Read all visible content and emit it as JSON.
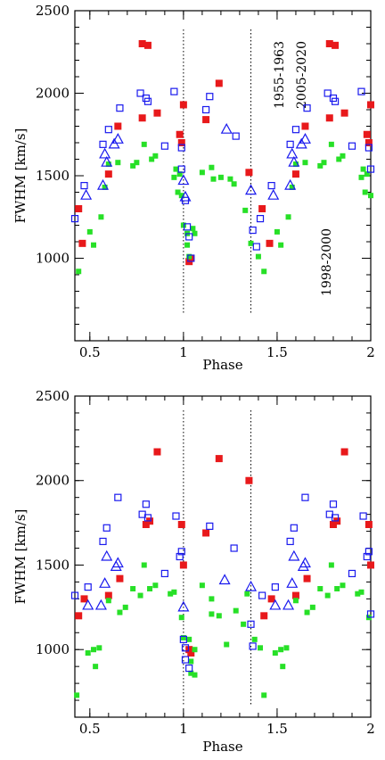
{
  "chart_data": [
    {
      "type": "scatter",
      "xlabel": "Phase",
      "ylabel": "FWHM [km/s]",
      "xlim": [
        0.42,
        2.0
      ],
      "ylim": [
        500,
        2500
      ],
      "xticks": [
        "0.5",
        "1",
        "1.5",
        "2"
      ],
      "yticks": [
        "1000",
        "1500",
        "2000",
        "2500"
      ],
      "vlines": [
        1.0,
        1.36
      ],
      "annotations": [
        "1955-1963",
        "2005-2020",
        "1998-2000"
      ],
      "series": [
        {
          "marker": "filled-square-red",
          "color": "#e8191b",
          "points": [
            [
              0.44,
              1300
            ],
            [
              0.46,
              1090
            ],
            [
              0.6,
              1510
            ],
            [
              0.65,
              1800
            ],
            [
              0.78,
              2300
            ],
            [
              0.81,
              2290
            ],
            [
              0.78,
              1850
            ],
            [
              0.86,
              1880
            ],
            [
              0.98,
              1750
            ],
            [
              0.99,
              1700
            ],
            [
              1.0,
              1930
            ],
            [
              1.03,
              980
            ],
            [
              1.04,
              1000
            ],
            [
              1.12,
              1840
            ],
            [
              1.19,
              2060
            ],
            [
              1.35,
              1520
            ],
            [
              1.42,
              1300
            ],
            [
              1.46,
              1090
            ],
            [
              1.6,
              1510
            ],
            [
              1.65,
              1800
            ],
            [
              1.78,
              2300
            ],
            [
              1.81,
              2290
            ],
            [
              1.78,
              1850
            ],
            [
              1.86,
              1880
            ],
            [
              1.98,
              1750
            ],
            [
              1.99,
              1700
            ],
            [
              2.0,
              1930
            ]
          ]
        },
        {
          "marker": "filled-square-green",
          "color": "#27e027",
          "points": [
            [
              0.44,
              920
            ],
            [
              0.5,
              1160
            ],
            [
              0.52,
              1080
            ],
            [
              0.56,
              1250
            ],
            [
              0.58,
              1430
            ],
            [
              0.6,
              1570
            ],
            [
              0.65,
              1580
            ],
            [
              0.73,
              1560
            ],
            [
              0.75,
              1580
            ],
            [
              0.79,
              1690
            ],
            [
              0.83,
              1600
            ],
            [
              0.85,
              1620
            ],
            [
              0.95,
              1490
            ],
            [
              0.96,
              1540
            ],
            [
              0.98,
              1510
            ],
            [
              0.97,
              1400
            ],
            [
              0.99,
              1380
            ],
            [
              1.0,
              1200
            ],
            [
              1.02,
              1150
            ],
            [
              1.02,
              1080
            ],
            [
              1.03,
              1010
            ],
            [
              1.05,
              1180
            ],
            [
              1.06,
              1150
            ],
            [
              1.1,
              1520
            ],
            [
              1.15,
              1550
            ],
            [
              1.16,
              1480
            ],
            [
              1.2,
              1490
            ],
            [
              1.25,
              1480
            ],
            [
              1.27,
              1450
            ],
            [
              1.33,
              1290
            ],
            [
              1.36,
              1090
            ],
            [
              1.4,
              1010
            ],
            [
              1.43,
              920
            ],
            [
              1.5,
              1160
            ],
            [
              1.52,
              1080
            ],
            [
              1.56,
              1250
            ],
            [
              1.58,
              1430
            ],
            [
              1.6,
              1570
            ],
            [
              1.65,
              1580
            ],
            [
              1.73,
              1560
            ],
            [
              1.75,
              1580
            ],
            [
              1.79,
              1690
            ],
            [
              1.83,
              1600
            ],
            [
              1.85,
              1620
            ],
            [
              1.95,
              1490
            ],
            [
              1.96,
              1540
            ],
            [
              1.98,
              1510
            ],
            [
              1.97,
              1400
            ],
            [
              2.0,
              1380
            ]
          ]
        },
        {
          "marker": "open-square-blue",
          "color": "#1a1aee",
          "points": [
            [
              0.42,
              1240
            ],
            [
              0.47,
              1440
            ],
            [
              0.57,
              1690
            ],
            [
              0.6,
              1780
            ],
            [
              0.66,
              1910
            ],
            [
              0.77,
              2000
            ],
            [
              0.8,
              1970
            ],
            [
              0.81,
              1950
            ],
            [
              0.9,
              1680
            ],
            [
              0.95,
              2010
            ],
            [
              0.99,
              1670
            ],
            [
              0.99,
              1540
            ],
            [
              1.01,
              1350
            ],
            [
              1.02,
              1190
            ],
            [
              1.03,
              1130
            ],
            [
              1.04,
              1000
            ],
            [
              1.12,
              1900
            ],
            [
              1.14,
              1980
            ],
            [
              1.28,
              1740
            ],
            [
              1.37,
              1170
            ],
            [
              1.39,
              1070
            ],
            [
              1.41,
              1240
            ],
            [
              1.47,
              1440
            ],
            [
              1.57,
              1690
            ],
            [
              1.6,
              1780
            ],
            [
              1.66,
              1910
            ],
            [
              1.77,
              2000
            ],
            [
              1.8,
              1970
            ],
            [
              1.81,
              1950
            ],
            [
              1.9,
              1680
            ],
            [
              1.95,
              2010
            ],
            [
              1.99,
              1670
            ],
            [
              2.0,
              1540
            ]
          ]
        },
        {
          "marker": "open-triangle-blue",
          "color": "#1a1aee",
          "points": [
            [
              0.48,
              1380
            ],
            [
              0.57,
              1440
            ],
            [
              0.58,
              1630
            ],
            [
              0.59,
              1580
            ],
            [
              0.63,
              1690
            ],
            [
              0.65,
              1720
            ],
            [
              1.0,
              1470
            ],
            [
              1.01,
              1370
            ],
            [
              1.23,
              1780
            ],
            [
              1.36,
              1410
            ],
            [
              1.48,
              1380
            ],
            [
              1.57,
              1440
            ],
            [
              1.58,
              1630
            ],
            [
              1.59,
              1580
            ],
            [
              1.63,
              1690
            ],
            [
              1.65,
              1720
            ]
          ]
        }
      ]
    },
    {
      "type": "scatter",
      "xlabel": "Phase",
      "ylabel": "FWHM [km/s]",
      "xlim": [
        0.42,
        2.0
      ],
      "ylim": [
        600,
        2500
      ],
      "xticks": [
        "0.5",
        "1",
        "1.5",
        "2"
      ],
      "yticks": [
        "1000",
        "1500",
        "2000",
        "2500"
      ],
      "vlines": [
        1.0,
        1.36
      ],
      "series": [
        {
          "marker": "filled-square-red",
          "color": "#e8191b",
          "points": [
            [
              0.44,
              1200
            ],
            [
              0.47,
              1300
            ],
            [
              0.6,
              1320
            ],
            [
              0.66,
              1420
            ],
            [
              0.8,
              1740
            ],
            [
              0.82,
              1760
            ],
            [
              0.86,
              2170
            ],
            [
              0.99,
              1740
            ],
            [
              1.0,
              1500
            ],
            [
              1.03,
              1000
            ],
            [
              1.04,
              980
            ],
            [
              1.12,
              1690
            ],
            [
              1.19,
              2130
            ],
            [
              1.35,
              2000
            ],
            [
              1.43,
              1200
            ],
            [
              1.47,
              1300
            ],
            [
              1.6,
              1320
            ],
            [
              1.66,
              1420
            ],
            [
              1.8,
              1740
            ],
            [
              1.82,
              1760
            ],
            [
              1.86,
              2170
            ],
            [
              1.99,
              1740
            ],
            [
              2.0,
              1500
            ]
          ]
        },
        {
          "marker": "filled-square-green",
          "color": "#27e027",
          "points": [
            [
              0.43,
              730
            ],
            [
              0.49,
              980
            ],
            [
              0.52,
              1000
            ],
            [
              0.53,
              900
            ],
            [
              0.55,
              1010
            ],
            [
              0.6,
              1290
            ],
            [
              0.66,
              1220
            ],
            [
              0.69,
              1250
            ],
            [
              0.73,
              1360
            ],
            [
              0.77,
              1320
            ],
            [
              0.79,
              1500
            ],
            [
              0.82,
              1360
            ],
            [
              0.85,
              1380
            ],
            [
              0.93,
              1330
            ],
            [
              0.95,
              1340
            ],
            [
              0.99,
              1190
            ],
            [
              1.0,
              1070
            ],
            [
              1.03,
              1060
            ],
            [
              1.04,
              930
            ],
            [
              1.04,
              860
            ],
            [
              1.06,
              850
            ],
            [
              1.06,
              1000
            ],
            [
              1.1,
              1380
            ],
            [
              1.15,
              1300
            ],
            [
              1.15,
              1210
            ],
            [
              1.19,
              1200
            ],
            [
              1.23,
              1030
            ],
            [
              1.28,
              1230
            ],
            [
              1.32,
              1150
            ],
            [
              1.34,
              1330
            ],
            [
              1.38,
              1060
            ],
            [
              1.41,
              1010
            ],
            [
              1.43,
              730
            ],
            [
              1.49,
              980
            ],
            [
              1.52,
              1000
            ],
            [
              1.53,
              900
            ],
            [
              1.55,
              1010
            ],
            [
              1.6,
              1290
            ],
            [
              1.66,
              1220
            ],
            [
              1.69,
              1250
            ],
            [
              1.73,
              1360
            ],
            [
              1.77,
              1320
            ],
            [
              1.79,
              1500
            ],
            [
              1.82,
              1360
            ],
            [
              1.85,
              1380
            ],
            [
              1.93,
              1330
            ],
            [
              1.95,
              1340
            ],
            [
              1.99,
              1190
            ]
          ]
        },
        {
          "marker": "open-square-blue",
          "color": "#1a1aee",
          "points": [
            [
              0.42,
              1320
            ],
            [
              0.49,
              1370
            ],
            [
              0.57,
              1640
            ],
            [
              0.59,
              1720
            ],
            [
              0.65,
              1900
            ],
            [
              0.78,
              1800
            ],
            [
              0.8,
              1860
            ],
            [
              0.81,
              1780
            ],
            [
              0.9,
              1450
            ],
            [
              0.96,
              1790
            ],
            [
              0.98,
              1550
            ],
            [
              0.99,
              1580
            ],
            [
              1.0,
              1060
            ],
            [
              1.01,
              1010
            ],
            [
              1.01,
              940
            ],
            [
              1.03,
              890
            ],
            [
              1.14,
              1730
            ],
            [
              1.27,
              1600
            ],
            [
              1.36,
              1150
            ],
            [
              1.37,
              1020
            ],
            [
              1.42,
              1320
            ],
            [
              1.49,
              1370
            ],
            [
              1.57,
              1640
            ],
            [
              1.59,
              1720
            ],
            [
              1.65,
              1900
            ],
            [
              1.78,
              1800
            ],
            [
              1.8,
              1860
            ],
            [
              1.81,
              1780
            ],
            [
              1.9,
              1450
            ],
            [
              1.96,
              1790
            ],
            [
              1.98,
              1550
            ],
            [
              1.99,
              1580
            ],
            [
              2.0,
              1210
            ]
          ]
        },
        {
          "marker": "open-triangle-blue",
          "color": "#1a1aee",
          "points": [
            [
              0.49,
              1260
            ],
            [
              0.56,
              1260
            ],
            [
              0.58,
              1390
            ],
            [
              0.59,
              1550
            ],
            [
              0.64,
              1490
            ],
            [
              0.65,
              1510
            ],
            [
              1.0,
              1250
            ],
            [
              1.22,
              1410
            ],
            [
              1.36,
              1370
            ],
            [
              1.49,
              1260
            ],
            [
              1.56,
              1260
            ],
            [
              1.58,
              1390
            ],
            [
              1.59,
              1550
            ],
            [
              1.64,
              1490
            ],
            [
              1.65,
              1510
            ]
          ]
        }
      ]
    }
  ]
}
